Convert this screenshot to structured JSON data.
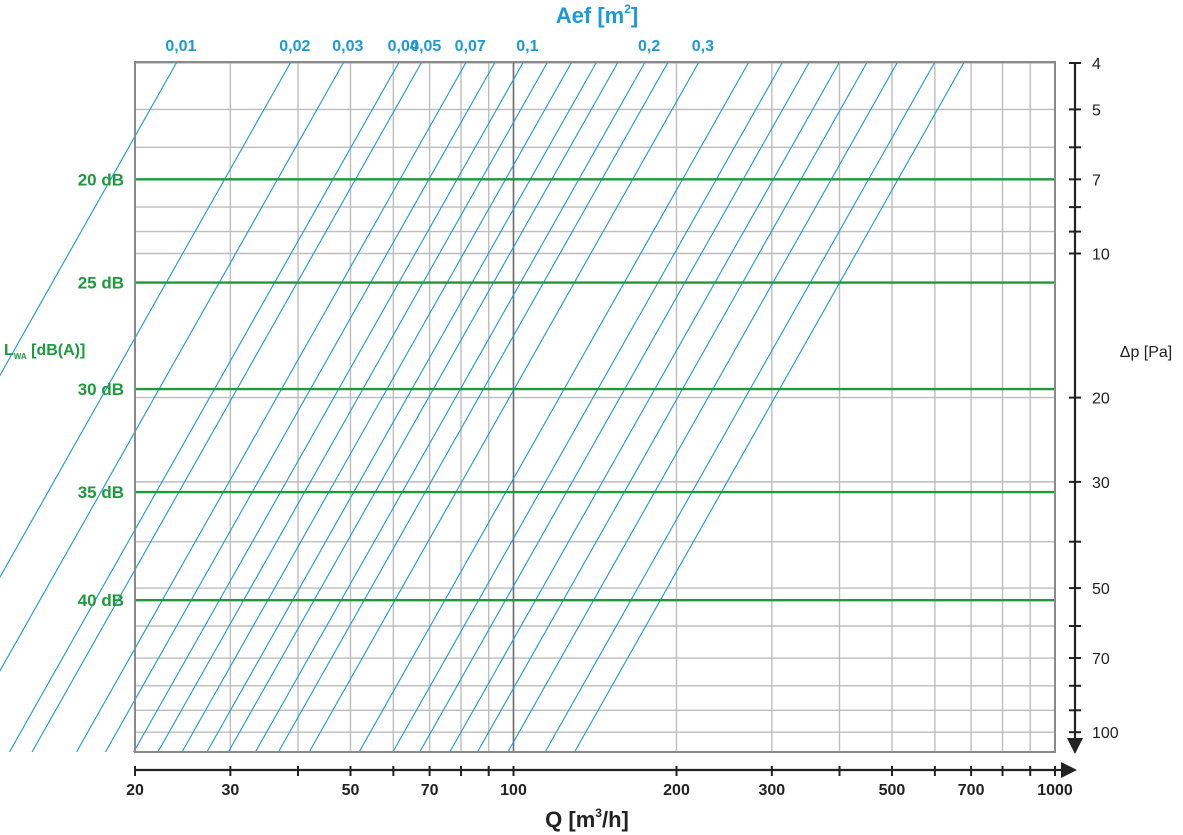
{
  "colors": {
    "aef_line": "#1a9ad6",
    "noise_line": "#1d9a3e",
    "grid": "#bdbdbd",
    "frame": "#8a8a8a",
    "axis": "#222222"
  },
  "chart_data": {
    "type": "line",
    "title": "Aef [m²]",
    "title_main": "Aef [m",
    "title_sup": "2",
    "title_end": "]",
    "x_axis": {
      "label_main": "Q [m",
      "label_sup": "3",
      "label_end": "/h]",
      "scale": "log",
      "range": [
        20,
        1000
      ],
      "ticks": [
        20,
        30,
        50,
        70,
        100,
        200,
        300,
        500,
        700,
        1000
      ],
      "tick_labels": [
        "20",
        "30",
        "50",
        "70",
        "100",
        "200",
        "300",
        "500",
        "700",
        "1000"
      ]
    },
    "y_axis": {
      "label": "Δp [Pa]",
      "scale": "log",
      "direction": "increasing downward",
      "range": [
        4,
        110
      ],
      "ticks": [
        4,
        5,
        7,
        10,
        20,
        30,
        50,
        70,
        100
      ],
      "tick_labels": [
        "4",
        "5",
        "7",
        "10",
        "20",
        "30",
        "50",
        "70",
        "100"
      ]
    },
    "aef_labels": [
      {
        "label": "0,01",
        "value": 0.01
      },
      {
        "label": "0,02",
        "value": 0.02
      },
      {
        "label": "0,03",
        "value": 0.03
      },
      {
        "label": "0,04",
        "value": 0.04
      },
      {
        "label": "0,05",
        "value": 0.05
      },
      {
        "label": "0,07",
        "value": 0.07
      },
      {
        "label": "0,1",
        "value": 0.1
      },
      {
        "label": "0,2",
        "value": 0.2
      },
      {
        "label": "0,3",
        "value": 0.3
      }
    ],
    "aef_lines_top_q": [
      23.9,
      38.8,
      48.6,
      61.5,
      67.7,
      81.8,
      92.5,
      104.3,
      115.6,
      128.1,
      142.4,
      156.0,
      175.0,
      193.0,
      220.0,
      272.0,
      314.0,
      352.0,
      400.0,
      450.0,
      512.0,
      600.0,
      680.0
    ],
    "aef_slope_log_dp_per_log_q": -2,
    "noise_axis_label_main": "L",
    "noise_axis_label_sub": "WA",
    "noise_axis_label_end": " [dB(A)]",
    "noise_levels": [
      {
        "label": "20 dB",
        "dp": 7
      },
      {
        "label": "25 dB",
        "dp": 11.5
      },
      {
        "label": "30 dB",
        "dp": 19.2
      },
      {
        "label": "35 dB",
        "dp": 31.5
      },
      {
        "label": "40 dB",
        "dp": 53
      }
    ],
    "grid": true
  }
}
